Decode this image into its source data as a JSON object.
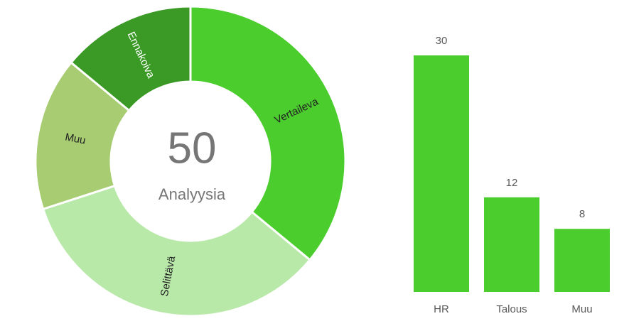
{
  "chart_data": [
    {
      "type": "donut",
      "categories": [
        "Vertaileva",
        "Selittävä",
        "Muu",
        "Ennakoiva"
      ],
      "values": [
        18,
        17,
        8,
        7
      ],
      "colors": [
        "#4ccd2e",
        "#b9e9a9",
        "#a8cc72",
        "#3a9a25"
      ],
      "center_value": 50,
      "center_label": "Analyysia"
    },
    {
      "type": "bar",
      "categories": [
        "HR",
        "Talous",
        "Muu"
      ],
      "values": [
        30,
        12,
        8
      ],
      "color": "#4ccd2e"
    }
  ]
}
